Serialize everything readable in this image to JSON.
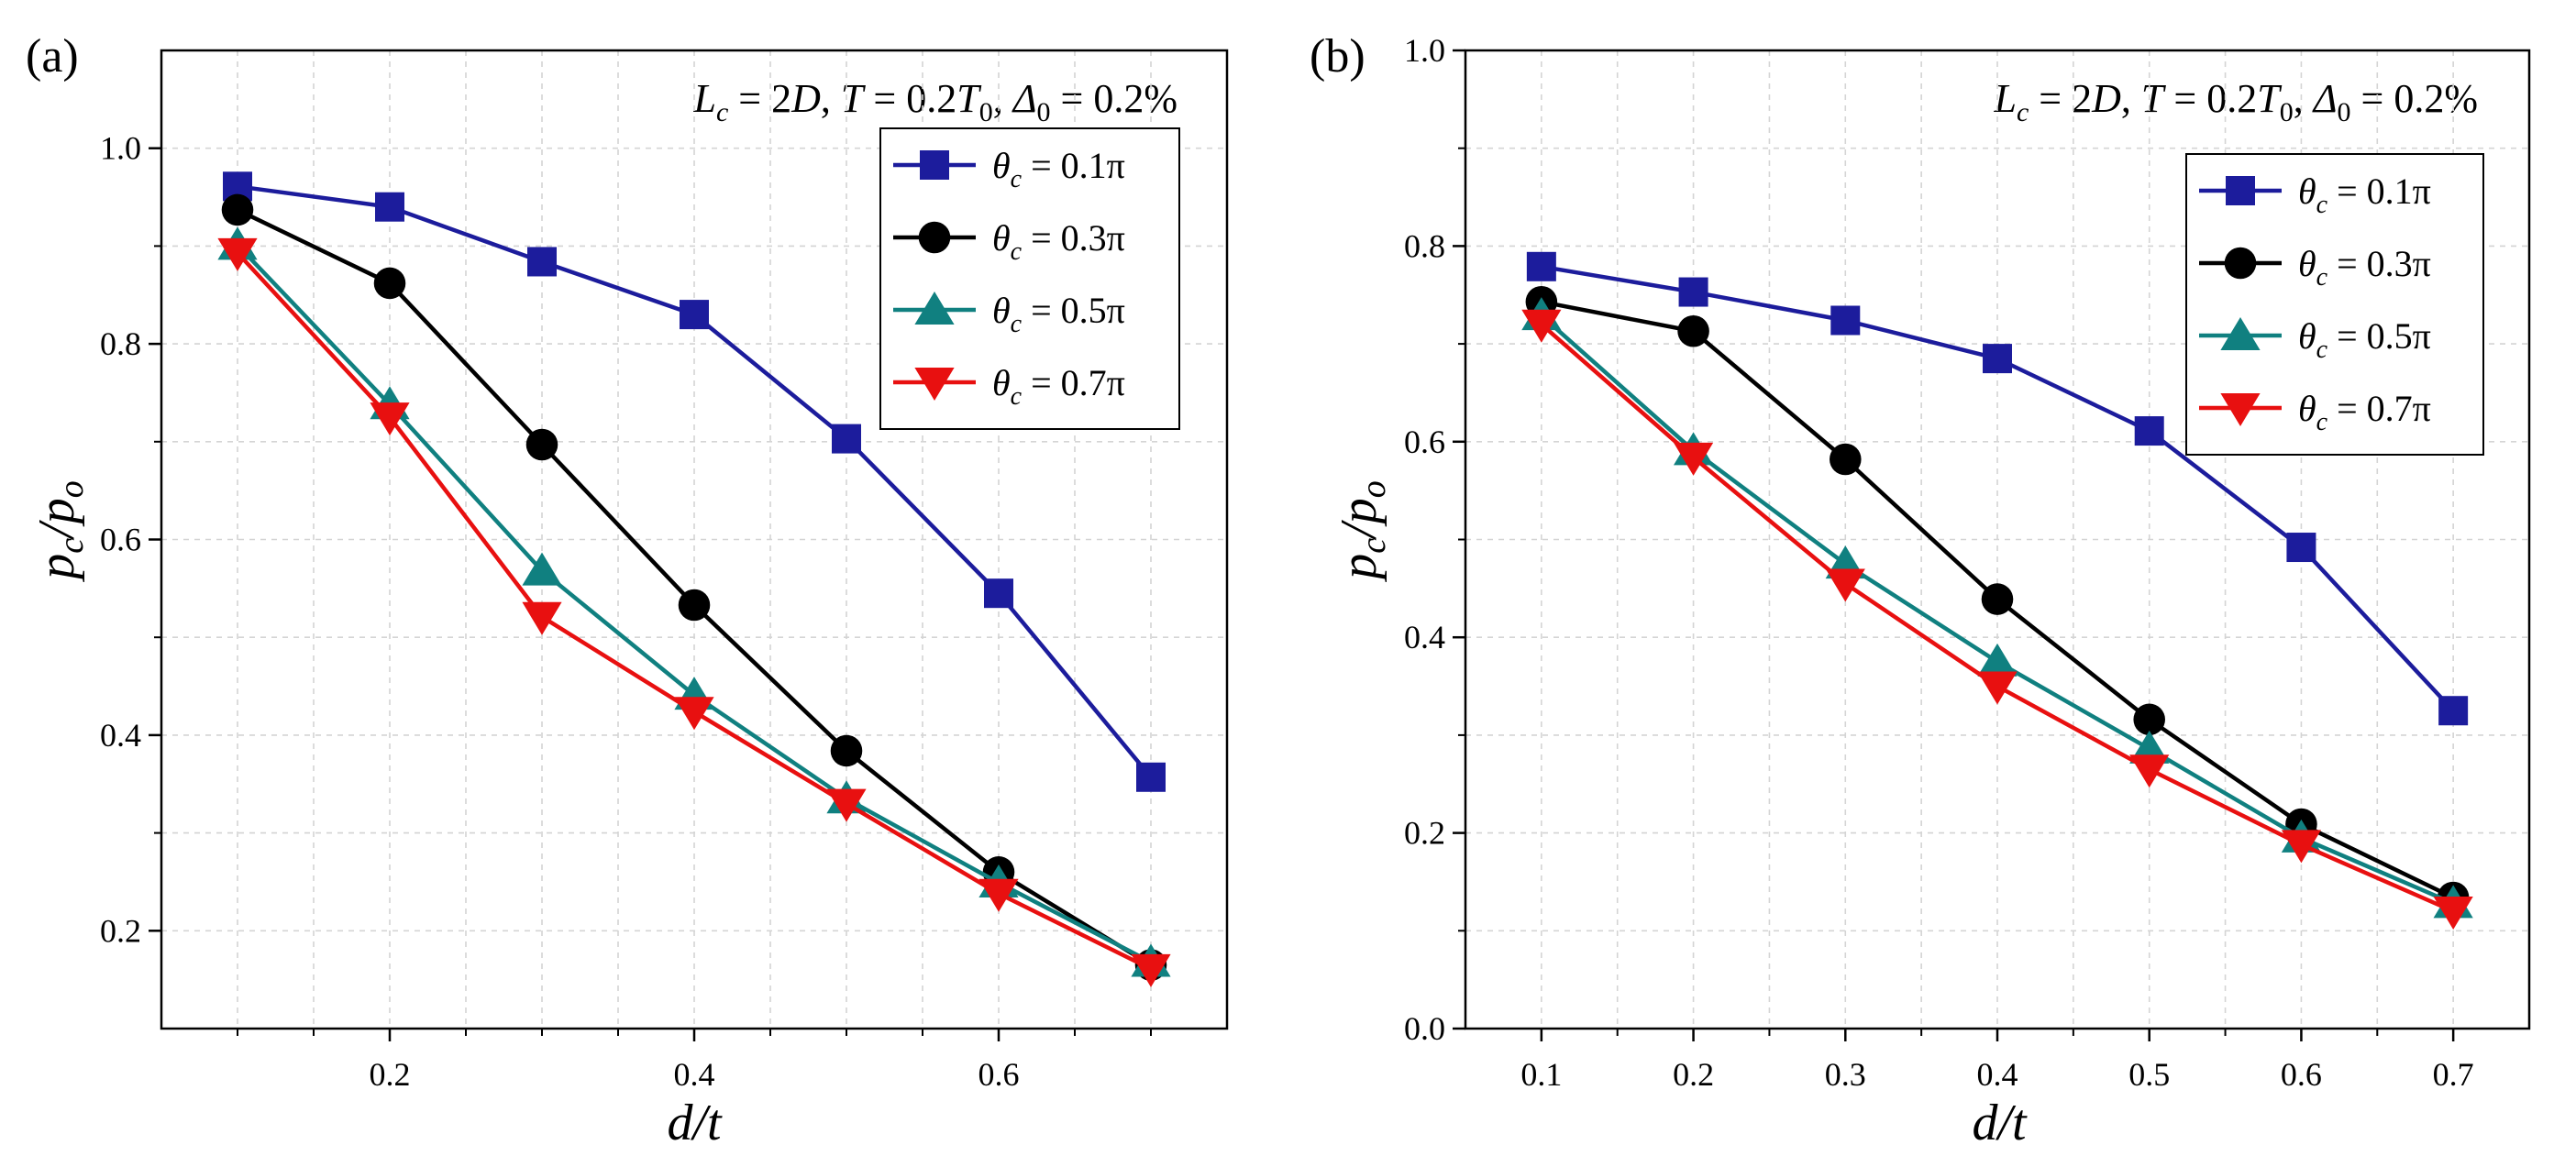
{
  "chart_data": [
    {
      "panel_label": "(a)",
      "type": "line",
      "annotation": "L_c = 2D, T = 0.2T_0, Δ_0 = 0.2%",
      "xlabel": "d/t",
      "ylabel": "p_c/p_o",
      "xlim": [
        0.05,
        0.75
      ],
      "ylim": [
        0.1,
        1.1
      ],
      "xticks": [
        0.2,
        0.4,
        0.6
      ],
      "yticks": [
        0.2,
        0.4,
        0.6,
        0.8,
        1.0
      ],
      "xtick_labels": [
        "0.2",
        "0.4",
        "0.6"
      ],
      "ytick_labels": [
        "0.2",
        "0.4",
        "0.6",
        "0.8",
        "1.0"
      ],
      "grid": true,
      "legend_position": "top-right",
      "x": [
        0.1,
        0.2,
        0.3,
        0.4,
        0.5,
        0.6,
        0.7
      ],
      "series": [
        {
          "name": "θc = 0.1π",
          "label_prefix": "θ",
          "label_sub": "c",
          "label_suffix": " = 0.1π",
          "color": "#1c1c9c",
          "marker": "square",
          "values": [
            0.961,
            0.94,
            0.884,
            0.83,
            0.703,
            0.545,
            0.357
          ]
        },
        {
          "name": "θc = 0.3π",
          "label_prefix": "θ",
          "label_sub": "c",
          "label_suffix": " = 0.3π",
          "color": "#000000",
          "marker": "circle",
          "values": [
            0.937,
            0.862,
            0.697,
            0.533,
            0.384,
            0.26,
            0.165
          ]
        },
        {
          "name": "θc = 0.5π",
          "label_prefix": "θ",
          "label_sub": "c",
          "label_suffix": " = 0.5π",
          "color": "#108080",
          "marker": "triangle-up",
          "values": [
            0.901,
            0.738,
            0.568,
            0.441,
            0.335,
            0.249,
            0.168
          ]
        },
        {
          "name": "θc = 0.7π",
          "label_prefix": "θ",
          "label_sub": "c",
          "label_suffix": " = 0.7π",
          "color": "#e81010",
          "marker": "triangle-down",
          "values": [
            0.893,
            0.725,
            0.521,
            0.424,
            0.33,
            0.238,
            0.161
          ]
        }
      ]
    },
    {
      "panel_label": "(b)",
      "type": "line",
      "annotation": "L_c = 2D, T = 0.2T_0, Δ_0 = 0.2%",
      "xlabel": "d/t",
      "ylabel": "p_c/p_o",
      "xlim": [
        0.05,
        0.75
      ],
      "ylim": [
        0.0,
        1.0
      ],
      "xticks": [
        0.1,
        0.2,
        0.3,
        0.4,
        0.5,
        0.6,
        0.7
      ],
      "yticks": [
        0.0,
        0.2,
        0.4,
        0.6,
        0.8,
        1.0
      ],
      "xtick_labels": [
        "0.1",
        "0.2",
        "0.3",
        "0.4",
        "0.5",
        "0.6",
        "0.7"
      ],
      "ytick_labels": [
        "0.0",
        "0.2",
        "0.4",
        "0.6",
        "0.8",
        "1.0"
      ],
      "grid": true,
      "legend_position": "top-right",
      "x": [
        0.1,
        0.2,
        0.3,
        0.4,
        0.5,
        0.6,
        0.7
      ],
      "series": [
        {
          "name": "θc = 0.1π",
          "label_prefix": "θ",
          "label_sub": "c",
          "label_suffix": " = 0.1π",
          "color": "#1c1c9c",
          "marker": "square",
          "values": [
            0.779,
            0.753,
            0.724,
            0.685,
            0.611,
            0.492,
            0.325
          ]
        },
        {
          "name": "θc = 0.3π",
          "label_prefix": "θ",
          "label_sub": "c",
          "label_suffix": " = 0.3π",
          "color": "#000000",
          "marker": "circle",
          "values": [
            0.743,
            0.713,
            0.582,
            0.439,
            0.316,
            0.209,
            0.134
          ]
        },
        {
          "name": "θc = 0.5π",
          "label_prefix": "θ",
          "label_sub": "c",
          "label_suffix": " = 0.5π",
          "color": "#108080",
          "marker": "triangle-up",
          "values": [
            0.729,
            0.591,
            0.475,
            0.375,
            0.286,
            0.195,
            0.128
          ]
        },
        {
          "name": "θc = 0.7π",
          "label_prefix": "θ",
          "label_sub": "c",
          "label_suffix": " = 0.7π",
          "color": "#e81010",
          "marker": "triangle-down",
          "values": [
            0.72,
            0.584,
            0.455,
            0.35,
            0.265,
            0.188,
            0.12
          ]
        }
      ]
    }
  ]
}
